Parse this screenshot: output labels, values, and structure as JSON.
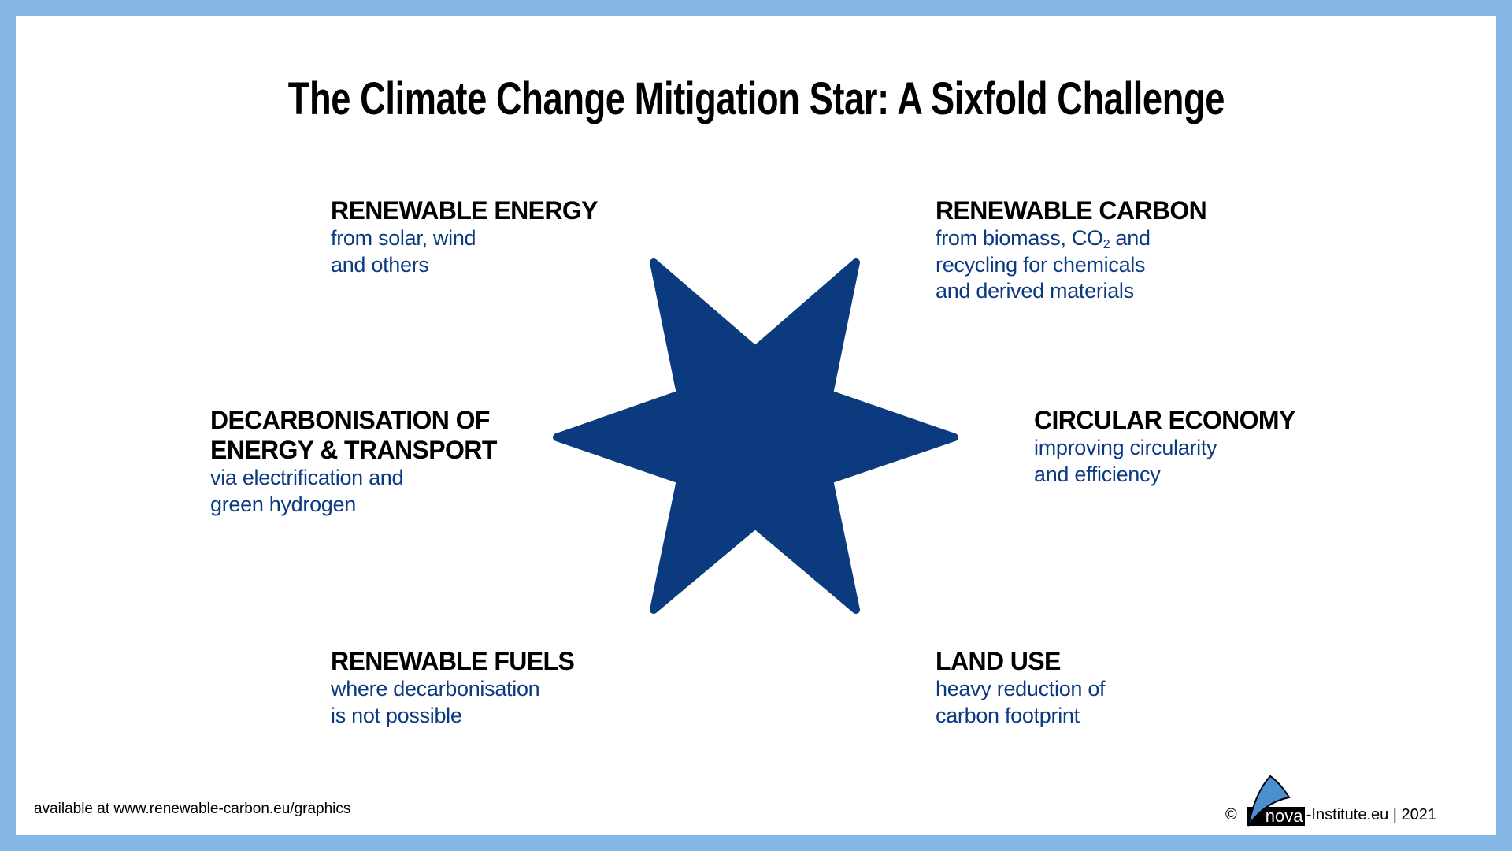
{
  "title": "The Climate Change Mitigation Star: A Sixfold Challenge",
  "colors": {
    "star": "#0b3a7e",
    "subtext": "#0b3a82",
    "frame": "#86b8e6",
    "logo_sail": "#4a8fd0"
  },
  "blocks": {
    "renewable_energy": {
      "heading": "RENEWABLE ENERGY",
      "lines": [
        "from solar, wind",
        "and others"
      ]
    },
    "renewable_carbon": {
      "heading": "RENEWABLE CARBON",
      "line1_pre": "from biomass, CO",
      "line1_sub": "2",
      "line1_post": " and",
      "lines": [
        "recycling for chemicals",
        "and derived materials"
      ]
    },
    "decarbonisation": {
      "heading_lines": [
        "DECARBONISATION OF",
        "ENERGY & TRANSPORT"
      ],
      "lines": [
        "via electrification and",
        "green hydrogen"
      ]
    },
    "circular_economy": {
      "heading": "CIRCULAR ECONOMY",
      "lines": [
        "improving circularity",
        "and efficiency"
      ]
    },
    "renewable_fuels": {
      "heading": "RENEWABLE FUELS",
      "lines": [
        "where decarbonisation",
        "is not possible"
      ]
    },
    "land_use": {
      "heading": "LAND USE",
      "lines": [
        "heavy reduction of",
        "carbon footprint"
      ]
    }
  },
  "footer": {
    "availability": "available at www.renewable-carbon.eu/graphics",
    "copyright_symbol": "©",
    "logo_text": "nova",
    "credit": "-Institute.eu | 2021"
  }
}
